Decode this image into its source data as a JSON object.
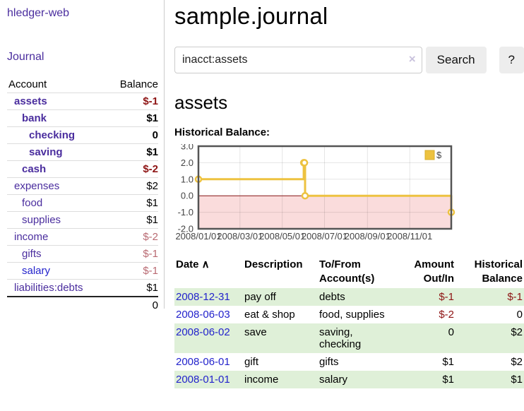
{
  "sidebar": {
    "brand": "hledger-web",
    "journal_label": "Journal",
    "accounts_table": {
      "headers": [
        "Account",
        "Balance"
      ],
      "rows": [
        {
          "account": "assets",
          "balance": "$-1",
          "depth": 1,
          "bold": true,
          "negative": "strong"
        },
        {
          "account": "bank",
          "balance": "$1",
          "depth": 2,
          "bold": true,
          "negative": null
        },
        {
          "account": "checking",
          "balance": "0",
          "depth": 3,
          "bold": true,
          "negative": null
        },
        {
          "account": "saving",
          "balance": "$1",
          "depth": 3,
          "bold": true,
          "negative": null
        },
        {
          "account": "cash",
          "balance": "$-2",
          "depth": 2,
          "bold": true,
          "negative": "strong"
        },
        {
          "account": "expenses",
          "balance": "$2",
          "depth": 1,
          "bold": false,
          "negative": null
        },
        {
          "account": "food",
          "balance": "$1",
          "depth": 2,
          "bold": false,
          "negative": null
        },
        {
          "account": "supplies",
          "balance": "$1",
          "depth": 2,
          "bold": false,
          "negative": null
        },
        {
          "account": "income",
          "balance": "$-2",
          "depth": 1,
          "bold": false,
          "negative": "soft"
        },
        {
          "account": "gifts",
          "balance": "$-1",
          "depth": 2,
          "bold": false,
          "negative": "soft"
        },
        {
          "account": "salary",
          "balance": "$-1",
          "depth": 2,
          "bold": false,
          "negative": "soft",
          "link_color": "blue"
        },
        {
          "account": "liabilities:debts",
          "balance": "$1",
          "depth": 1,
          "bold": false,
          "negative": null
        }
      ],
      "total": "0"
    }
  },
  "main": {
    "title": "sample.journal",
    "search": {
      "value": "inacct:assets",
      "clear_icon": "×",
      "button_label": "Search",
      "help_label": "?"
    },
    "account_heading": "assets",
    "chart_label": "Historical Balance:"
  },
  "chart_data": {
    "type": "line",
    "step": true,
    "title": "Historical Balance",
    "series": [
      {
        "name": "$",
        "color": "#edc240",
        "point_fill": "#ffffff",
        "points": [
          [
            "2008-01-01",
            1
          ],
          [
            "2008-06-01",
            2
          ],
          [
            "2008-06-02",
            2
          ],
          [
            "2008-06-03",
            0
          ],
          [
            "2008-12-31",
            -1
          ]
        ]
      }
    ],
    "xlim": [
      "2008-01-01",
      "2008-12-31"
    ],
    "ylim": [
      -2,
      3
    ],
    "x_ticks": [
      "2008/01/01",
      "2008/03/01",
      "2008/05/01",
      "2008/07/01",
      "2008/09/01",
      "2008/11/01"
    ],
    "y_ticks": [
      3.0,
      2.0,
      1.0,
      0.0,
      -1.0,
      -2.0
    ],
    "grid": true,
    "legend_position": "top-right",
    "negative_region_color": "#fadcdc",
    "zero_line_color": "#8b1a1a",
    "border_color": "#545454",
    "grid_color": "rgba(0,0,0,0.10)"
  },
  "register_table": {
    "headers": [
      {
        "lines": [
          "Date"
        ],
        "sort_indicator": "∧",
        "align": "left"
      },
      {
        "lines": [
          "Description"
        ],
        "align": "left"
      },
      {
        "lines": [
          "To/From",
          "Account(s)"
        ],
        "align": "left"
      },
      {
        "lines": [
          "Amount",
          "Out/In"
        ],
        "align": "right"
      },
      {
        "lines": [
          "Historical",
          "Balance"
        ],
        "align": "right"
      }
    ],
    "rows": [
      {
        "date": "2008-12-31",
        "description": "pay off",
        "accounts_lines": [
          "debts"
        ],
        "amount": "$-1",
        "amount_neg": true,
        "balance": "$-1",
        "balance_neg": true,
        "green": true
      },
      {
        "date": "2008-06-03",
        "description": "eat & shop",
        "accounts_lines": [
          "food, supplies"
        ],
        "amount": "$-2",
        "amount_neg": true,
        "balance": "0",
        "balance_neg": false,
        "green": false
      },
      {
        "date": "2008-06-02",
        "description": "save",
        "accounts_lines": [
          "saving,",
          "checking"
        ],
        "amount": "0",
        "amount_neg": false,
        "balance": "$2",
        "balance_neg": false,
        "green": true
      },
      {
        "date": "2008-06-01",
        "description": "gift",
        "accounts_lines": [
          "gifts"
        ],
        "amount": "$1",
        "amount_neg": false,
        "balance": "$2",
        "balance_neg": false,
        "green": false
      },
      {
        "date": "2008-01-01",
        "description": "income",
        "accounts_lines": [
          "salary"
        ],
        "amount": "$1",
        "amount_neg": false,
        "balance": "$1",
        "balance_neg": false,
        "green": true
      }
    ]
  }
}
